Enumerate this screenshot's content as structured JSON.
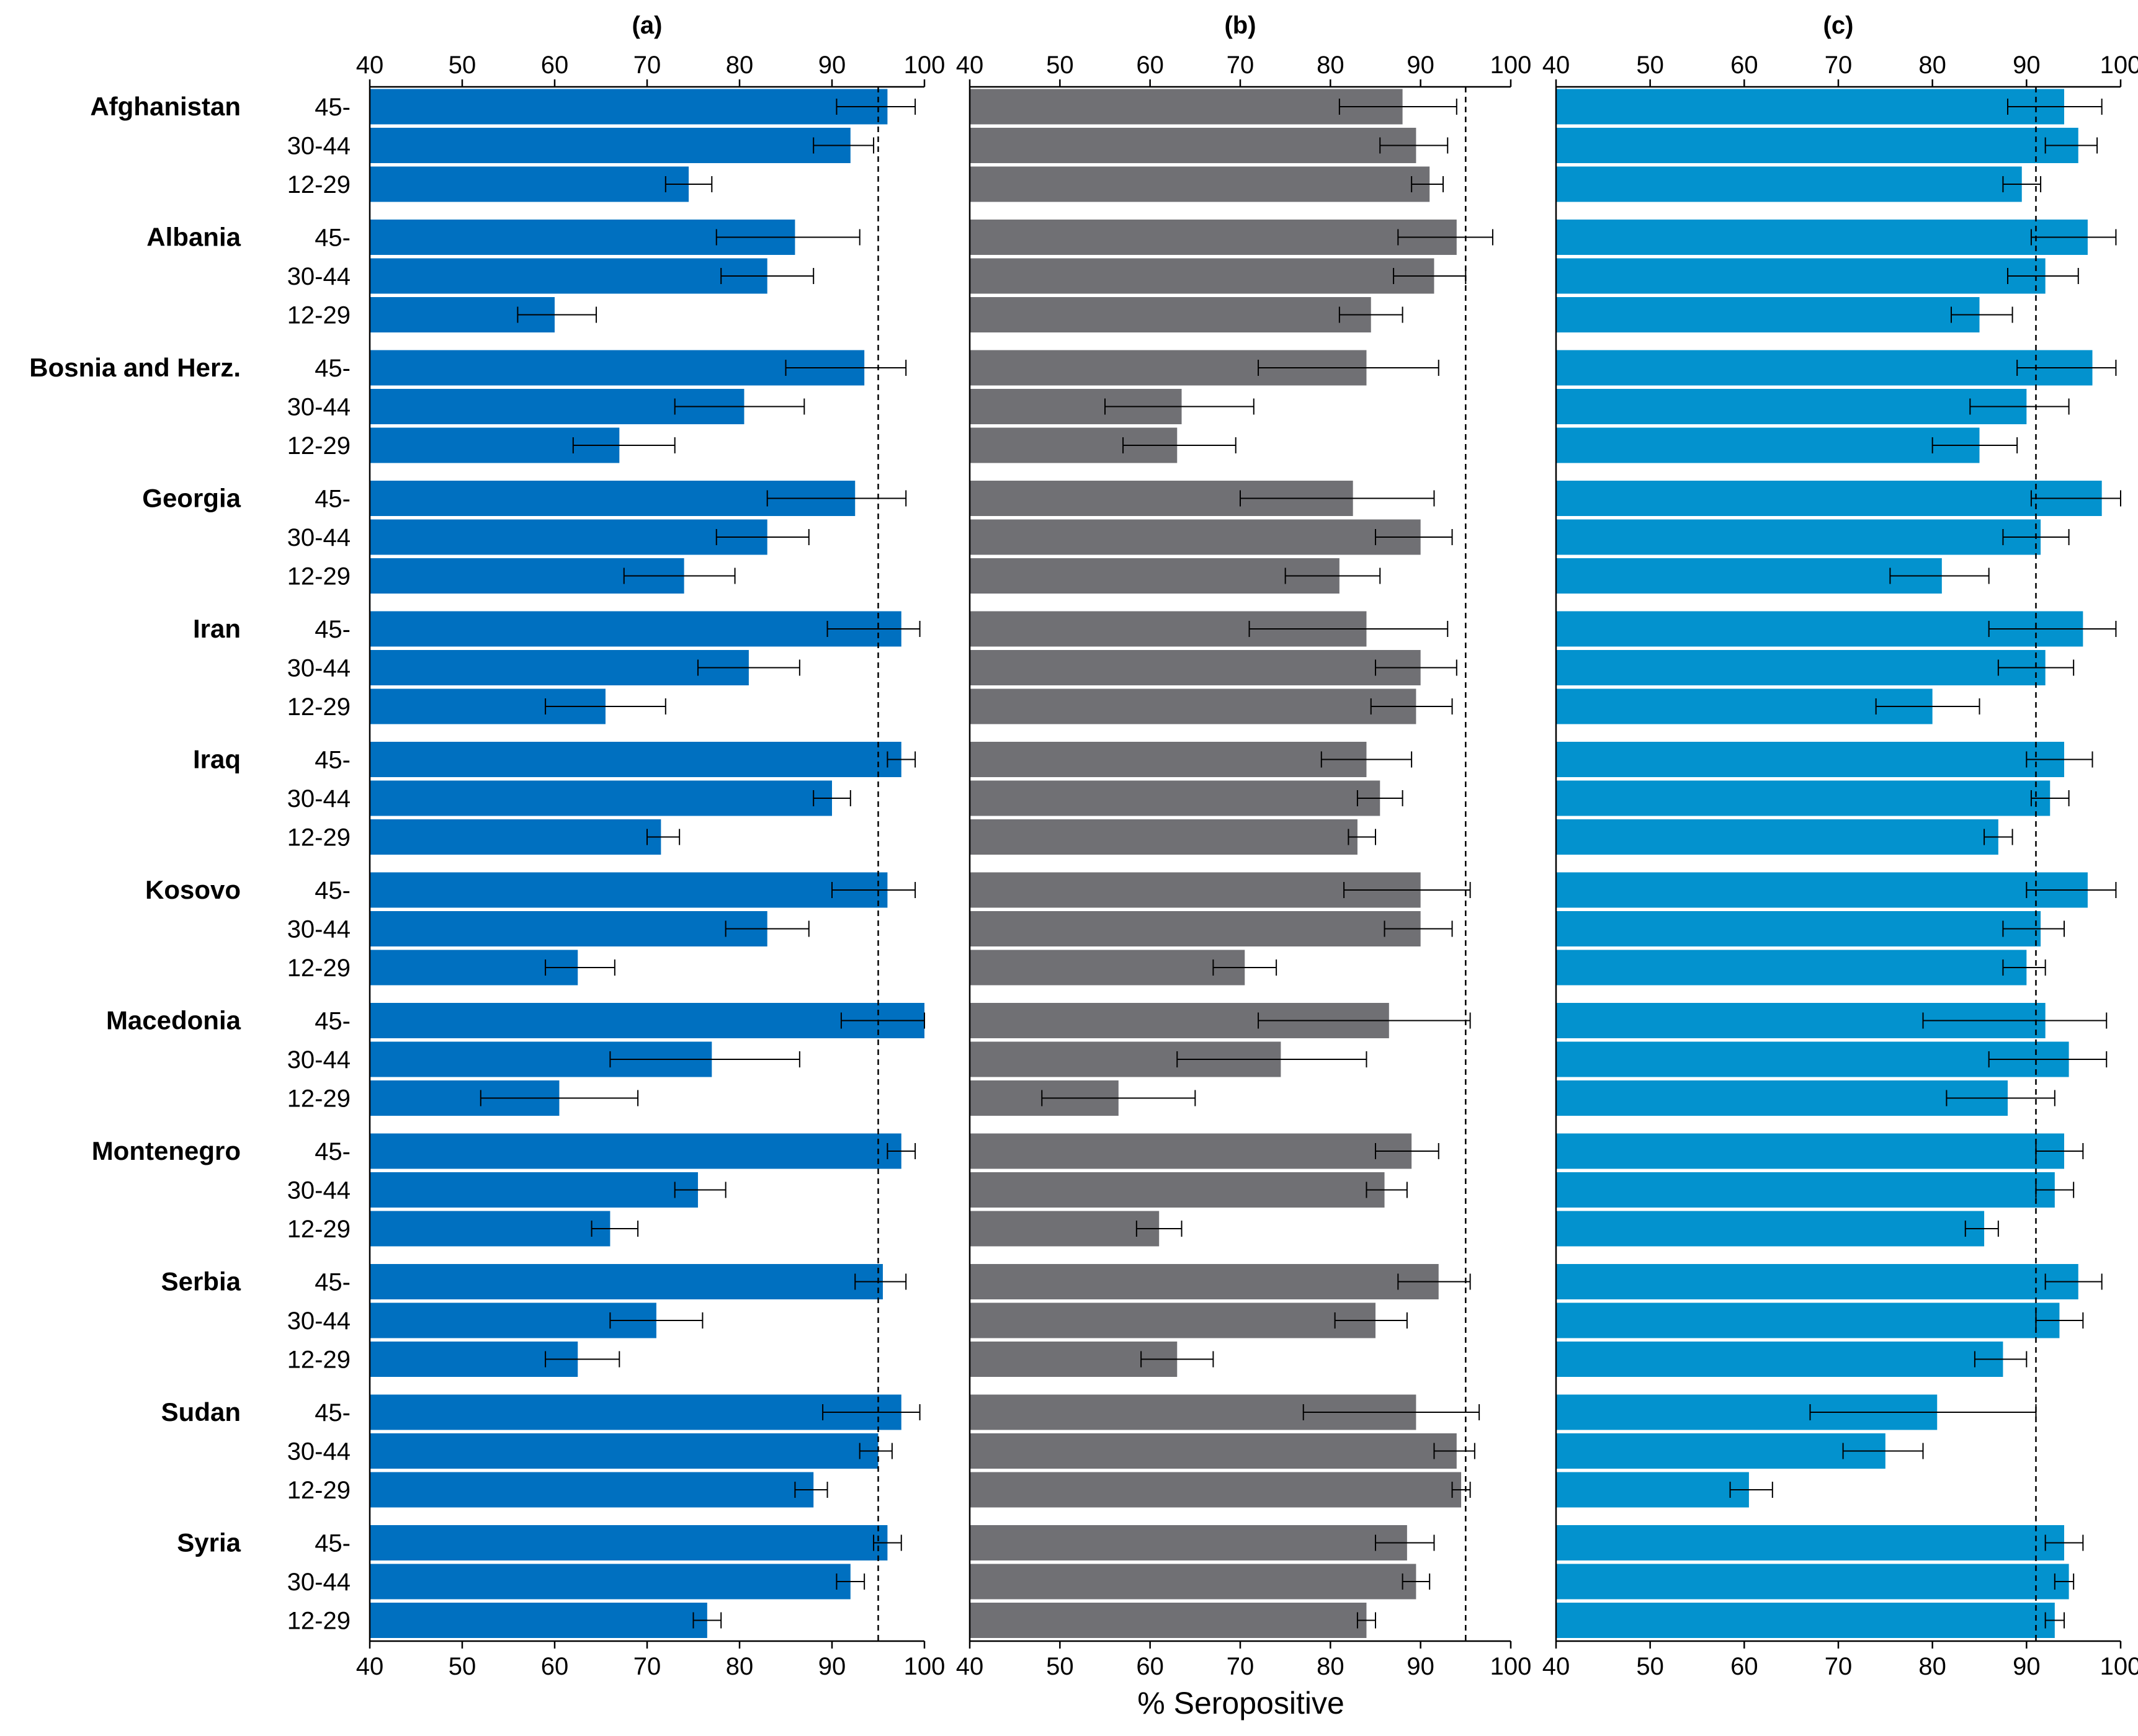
{
  "chart_data": {
    "type": "bar",
    "orientation": "horizontal",
    "xlabel": "% Seropositive",
    "xlim": [
      40,
      100
    ],
    "ticks": [
      40,
      50,
      60,
      70,
      80,
      90,
      100
    ],
    "countries": [
      "Afghanistan",
      "Albania",
      "Bosnia and Herz.",
      "Georgia",
      "Iran",
      "Iraq",
      "Kosovo",
      "Macedonia",
      "Montenegro",
      "Serbia",
      "Sudan",
      "Syria"
    ],
    "age_groups": [
      "45-",
      "30-44",
      "12-29"
    ],
    "panels": [
      {
        "title": "(a)",
        "color": "#0070c0",
        "reference_line": 95,
        "values": [
          [
            96,
            92,
            74.5
          ],
          [
            86,
            83,
            60
          ],
          [
            93.5,
            80.5,
            67
          ],
          [
            92.5,
            83,
            74
          ],
          [
            97.5,
            81,
            65.5
          ],
          [
            97.5,
            90,
            71.5
          ],
          [
            96,
            83,
            62.5
          ],
          [
            100,
            77,
            60.5
          ],
          [
            97.5,
            75.5,
            66
          ],
          [
            95.5,
            71,
            62.5
          ],
          [
            97.5,
            95,
            88
          ],
          [
            96,
            92,
            76.5
          ]
        ],
        "errors_low": [
          [
            90.5,
            88,
            72
          ],
          [
            77.5,
            78,
            56
          ],
          [
            85,
            73,
            62
          ],
          [
            83,
            77.5,
            67.5
          ],
          [
            89.5,
            75.5,
            59
          ],
          [
            96,
            88,
            70
          ],
          [
            90,
            78.5,
            59
          ],
          [
            91,
            66,
            52
          ],
          [
            96,
            73,
            64
          ],
          [
            92.5,
            66,
            59
          ],
          [
            89,
            93,
            86
          ],
          [
            94.5,
            90.5,
            75
          ]
        ],
        "errors_high": [
          [
            99,
            94.5,
            77
          ],
          [
            93,
            88,
            64.5
          ],
          [
            98,
            87,
            73
          ],
          [
            98,
            87.5,
            79.5
          ],
          [
            99.5,
            86.5,
            72
          ],
          [
            99,
            92,
            73.5
          ],
          [
            99,
            87.5,
            66.5
          ],
          [
            100,
            86.5,
            69
          ],
          [
            99,
            78.5,
            69
          ],
          [
            98,
            76,
            67
          ],
          [
            99.5,
            96.5,
            89.5
          ],
          [
            97.5,
            93.5,
            78
          ]
        ]
      },
      {
        "title": "(b)",
        "color": "#707074",
        "reference_line": 95,
        "values": [
          [
            88,
            89.5,
            91
          ],
          [
            94,
            91.5,
            84.5
          ],
          [
            84,
            63.5,
            63
          ],
          [
            82.5,
            90,
            81
          ],
          [
            84,
            90,
            89.5
          ],
          [
            84,
            85.5,
            83
          ],
          [
            90,
            90,
            70.5
          ],
          [
            86.5,
            74.5,
            56.5
          ],
          [
            89,
            86,
            61
          ],
          [
            92,
            85,
            63
          ],
          [
            89.5,
            94,
            94.5
          ],
          [
            88.5,
            89.5,
            84
          ]
        ],
        "errors_low": [
          [
            81,
            85.5,
            89
          ],
          [
            87.5,
            87,
            81
          ],
          [
            72,
            55,
            57
          ],
          [
            70,
            85,
            75
          ],
          [
            71,
            85,
            84.5
          ],
          [
            79,
            83,
            82
          ],
          [
            81.5,
            86,
            67
          ],
          [
            72,
            63,
            48
          ],
          [
            85,
            84,
            58.5
          ],
          [
            87.5,
            80.5,
            59
          ],
          [
            77,
            91.5,
            93.5
          ],
          [
            85,
            88,
            83
          ]
        ],
        "errors_high": [
          [
            94,
            93,
            92.5
          ],
          [
            98,
            95,
            88
          ],
          [
            92,
            71.5,
            69.5
          ],
          [
            91.5,
            93.5,
            85.5
          ],
          [
            93,
            94,
            93.5
          ],
          [
            89,
            88,
            85
          ],
          [
            95.5,
            93.5,
            74
          ],
          [
            95.5,
            84,
            65
          ],
          [
            92,
            88.5,
            63.5
          ],
          [
            95.5,
            88.5,
            67
          ],
          [
            96.5,
            96,
            95.5
          ],
          [
            91.5,
            91,
            85
          ]
        ]
      },
      {
        "title": "(c)",
        "color": "#0392ce",
        "reference_line": 91,
        "values": [
          [
            94,
            95.5,
            89.5
          ],
          [
            96.5,
            92,
            85
          ],
          [
            97,
            90,
            85
          ],
          [
            98,
            91.5,
            81
          ],
          [
            96,
            92,
            80
          ],
          [
            94,
            92.5,
            87
          ],
          [
            96.5,
            91.5,
            90
          ],
          [
            92,
            94.5,
            88
          ],
          [
            94,
            93,
            85.5
          ],
          [
            95.5,
            93.5,
            87.5
          ],
          [
            80.5,
            75,
            60.5
          ],
          [
            94,
            94.5,
            93
          ]
        ],
        "errors_low": [
          [
            88,
            92,
            87.5
          ],
          [
            90.5,
            88,
            82
          ],
          [
            89,
            84,
            80
          ],
          [
            90.5,
            87.5,
            75.5
          ],
          [
            86,
            87,
            74
          ],
          [
            90,
            90.5,
            85.5
          ],
          [
            90,
            87.5,
            87.5
          ],
          [
            79,
            86,
            81.5
          ],
          [
            91,
            91,
            83.5
          ],
          [
            92,
            91,
            84.5
          ],
          [
            67,
            70.5,
            58.5
          ],
          [
            92,
            93,
            92
          ]
        ],
        "errors_high": [
          [
            98,
            97.5,
            91.5
          ],
          [
            99.5,
            95.5,
            88.5
          ],
          [
            99.5,
            94.5,
            89
          ],
          [
            100,
            94.5,
            86
          ],
          [
            99.5,
            95,
            85
          ],
          [
            97,
            94.5,
            88.5
          ],
          [
            99.5,
            94,
            92
          ],
          [
            98.5,
            98.5,
            93
          ],
          [
            96,
            95,
            87
          ],
          [
            98,
            96,
            90
          ],
          [
            91,
            79,
            63
          ],
          [
            96,
            95,
            94
          ]
        ]
      }
    ]
  }
}
